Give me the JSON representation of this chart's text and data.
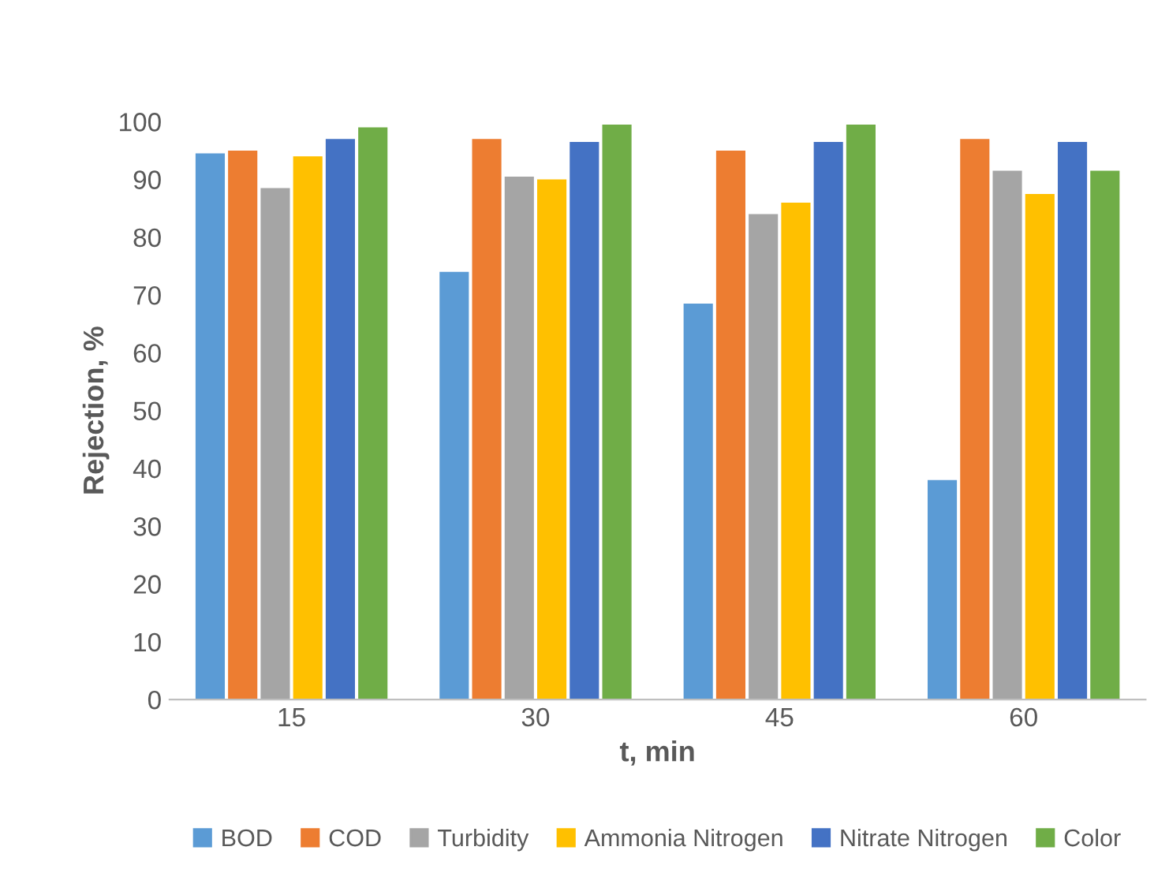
{
  "chart_data": {
    "type": "bar",
    "xlabel": "t, min",
    "ylabel": "Rejection, %",
    "categories": [
      "15",
      "30",
      "45",
      "60"
    ],
    "series": [
      {
        "name": "BOD",
        "color": "#5b9bd5",
        "values": [
          94.5,
          74,
          68.5,
          38
        ]
      },
      {
        "name": "COD",
        "color": "#ed7d31",
        "values": [
          95,
          97,
          95,
          97
        ]
      },
      {
        "name": "Turbidity",
        "color": "#a5a5a5",
        "values": [
          88.5,
          90.5,
          84,
          91.5
        ]
      },
      {
        "name": "Ammonia Nitrogen",
        "color": "#ffc000",
        "values": [
          94,
          90,
          86,
          87.5
        ]
      },
      {
        "name": "Nitrate Nitrogen",
        "color": "#4472c4",
        "values": [
          97,
          96.5,
          96.5,
          96.5
        ]
      },
      {
        "name": "Color",
        "color": "#70ad47",
        "values": [
          99,
          99.5,
          99.5,
          91.5
        ]
      }
    ],
    "ylim": [
      0,
      100
    ],
    "yticks": [
      0,
      10,
      20,
      30,
      40,
      50,
      60,
      70,
      80,
      90,
      100
    ],
    "grid": false,
    "legend": "bottom"
  }
}
